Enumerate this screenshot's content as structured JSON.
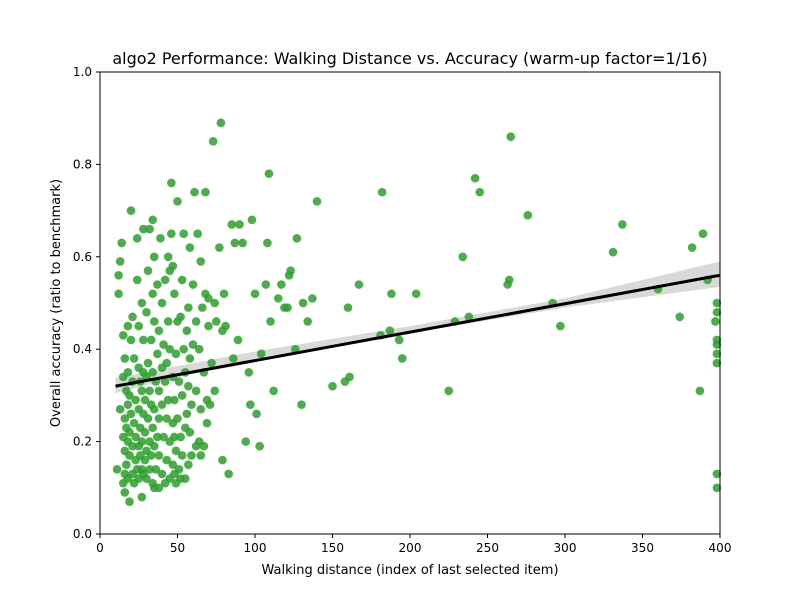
{
  "chart_data": {
    "type": "scatter",
    "title": "algo2 Performance: Walking Distance vs. Accuracy (warm-up factor=1/16)",
    "xlabel": "Walking distance (index of last selected item)",
    "ylabel": "Overall accuracy (ratio to benchmark)",
    "xlim": [
      0,
      400
    ],
    "ylim": [
      0.0,
      1.0
    ],
    "x_ticks": [
      "0",
      "50",
      "100",
      "150",
      "200",
      "250",
      "300",
      "350",
      "400"
    ],
    "y_ticks": [
      "0.0",
      "0.2",
      "0.4",
      "0.6",
      "0.8",
      "1.0"
    ],
    "grid": false,
    "legend": "none",
    "point_color": "#2ca02c",
    "regression": {
      "line": [
        [
          10,
          0.32
        ],
        [
          400,
          0.56
        ]
      ],
      "ci_band": {
        "x": [
          10,
          100,
          200,
          300,
          400
        ],
        "lower": [
          0.305,
          0.38,
          0.435,
          0.49,
          0.535
        ],
        "upper": [
          0.338,
          0.395,
          0.45,
          0.51,
          0.59
        ]
      },
      "line_color": "#000000",
      "band_color": "#cccccc"
    },
    "points": [
      [
        11,
        0.14
      ],
      [
        12,
        0.52
      ],
      [
        12,
        0.56
      ],
      [
        13,
        0.27
      ],
      [
        13,
        0.59
      ],
      [
        14,
        0.63
      ],
      [
        15,
        0.11
      ],
      [
        15,
        0.21
      ],
      [
        15,
        0.34
      ],
      [
        15,
        0.43
      ],
      [
        16,
        0.09
      ],
      [
        16,
        0.13
      ],
      [
        16,
        0.18
      ],
      [
        16,
        0.25
      ],
      [
        16,
        0.38
      ],
      [
        17,
        0.15
      ],
      [
        17,
        0.23
      ],
      [
        17,
        0.31
      ],
      [
        18,
        0.12
      ],
      [
        18,
        0.2
      ],
      [
        18,
        0.28
      ],
      [
        18,
        0.35
      ],
      [
        18,
        0.45
      ],
      [
        19,
        0.07
      ],
      [
        19,
        0.17
      ],
      [
        19,
        0.22
      ],
      [
        19,
        0.3
      ],
      [
        20,
        0.7
      ],
      [
        20,
        0.42
      ],
      [
        20,
        0.26
      ],
      [
        21,
        0.13
      ],
      [
        21,
        0.19
      ],
      [
        21,
        0.33
      ],
      [
        21,
        0.47
      ],
      [
        22,
        0.11
      ],
      [
        22,
        0.24
      ],
      [
        22,
        0.38
      ],
      [
        23,
        0.16
      ],
      [
        23,
        0.21
      ],
      [
        23,
        0.29
      ],
      [
        24,
        0.14
      ],
      [
        24,
        0.55
      ],
      [
        24,
        0.64
      ],
      [
        25,
        0.12
      ],
      [
        25,
        0.19
      ],
      [
        25,
        0.27
      ],
      [
        25,
        0.36
      ],
      [
        25,
        0.45
      ],
      [
        26,
        0.17
      ],
      [
        26,
        0.23
      ],
      [
        26,
        0.33
      ],
      [
        27,
        0.08
      ],
      [
        27,
        0.14
      ],
      [
        27,
        0.2
      ],
      [
        27,
        0.31
      ],
      [
        27,
        0.5
      ],
      [
        28,
        0.13
      ],
      [
        28,
        0.26
      ],
      [
        28,
        0.35
      ],
      [
        28,
        0.42
      ],
      [
        28,
        0.66
      ],
      [
        29,
        0.16
      ],
      [
        29,
        0.22
      ],
      [
        29,
        0.29
      ],
      [
        30,
        0.12
      ],
      [
        30,
        0.18
      ],
      [
        30,
        0.34
      ],
      [
        30,
        0.48
      ],
      [
        31,
        0.25
      ],
      [
        31,
        0.37
      ],
      [
        31,
        0.57
      ],
      [
        32,
        0.14
      ],
      [
        32,
        0.2
      ],
      [
        32,
        0.31
      ],
      [
        32,
        0.66
      ],
      [
        33,
        0.17
      ],
      [
        33,
        0.28
      ],
      [
        33,
        0.42
      ],
      [
        34,
        0.11
      ],
      [
        34,
        0.23
      ],
      [
        34,
        0.35
      ],
      [
        34,
        0.52
      ],
      [
        34,
        0.68
      ],
      [
        35,
        0.1
      ],
      [
        35,
        0.19
      ],
      [
        35,
        0.27
      ],
      [
        35,
        0.46
      ],
      [
        35,
        0.6
      ],
      [
        36,
        0.14
      ],
      [
        36,
        0.33
      ],
      [
        37,
        0.21
      ],
      [
        37,
        0.39
      ],
      [
        37,
        0.54
      ],
      [
        38,
        0.1
      ],
      [
        38,
        0.17
      ],
      [
        38,
        0.25
      ],
      [
        38,
        0.31
      ],
      [
        38,
        0.44
      ],
      [
        39,
        0.64
      ],
      [
        40,
        0.13
      ],
      [
        40,
        0.28
      ],
      [
        40,
        0.36
      ],
      [
        40,
        0.5
      ],
      [
        41,
        0.21
      ],
      [
        41,
        0.41
      ],
      [
        42,
        0.11
      ],
      [
        42,
        0.33
      ],
      [
        42,
        0.55
      ],
      [
        43,
        0.16
      ],
      [
        43,
        0.25
      ],
      [
        43,
        0.37
      ],
      [
        44,
        0.29
      ],
      [
        44,
        0.46
      ],
      [
        44,
        0.6
      ],
      [
        45,
        0.12
      ],
      [
        45,
        0.2
      ],
      [
        45,
        0.4
      ],
      [
        45,
        0.57
      ],
      [
        46,
        0.65
      ],
      [
        46,
        0.76
      ],
      [
        47,
        0.15
      ],
      [
        47,
        0.24
      ],
      [
        47,
        0.34
      ],
      [
        47,
        0.58
      ],
      [
        48,
        0.13
      ],
      [
        48,
        0.21
      ],
      [
        48,
        0.29
      ],
      [
        48,
        0.52
      ],
      [
        49,
        0.11
      ],
      [
        49,
        0.18
      ],
      [
        49,
        0.39
      ],
      [
        50,
        0.72
      ],
      [
        50,
        0.25
      ],
      [
        50,
        0.46
      ],
      [
        51,
        0.14
      ],
      [
        51,
        0.33
      ],
      [
        52,
        0.12
      ],
      [
        52,
        0.21
      ],
      [
        52,
        0.47
      ],
      [
        53,
        0.17
      ],
      [
        53,
        0.3
      ],
      [
        53,
        0.55
      ],
      [
        54,
        0.4
      ],
      [
        54,
        0.65
      ],
      [
        55,
        0.12
      ],
      [
        55,
        0.23
      ],
      [
        55,
        0.35
      ],
      [
        56,
        0.26
      ],
      [
        56,
        0.44
      ],
      [
        57,
        0.15
      ],
      [
        57,
        0.32
      ],
      [
        57,
        0.49
      ],
      [
        58,
        0.22
      ],
      [
        58,
        0.38
      ],
      [
        58,
        0.62
      ],
      [
        59,
        0.17
      ],
      [
        59,
        0.28
      ],
      [
        60,
        0.41
      ],
      [
        60,
        0.54
      ],
      [
        61,
        0.74
      ],
      [
        62,
        0.19
      ],
      [
        62,
        0.31
      ],
      [
        62,
        0.46
      ],
      [
        63,
        0.65
      ],
      [
        64,
        0.2
      ],
      [
        64,
        0.4
      ],
      [
        65,
        0.17
      ],
      [
        65,
        0.27
      ],
      [
        65,
        0.59
      ],
      [
        66,
        0.49
      ],
      [
        67,
        0.19
      ],
      [
        67,
        0.35
      ],
      [
        68,
        0.74
      ],
      [
        68,
        0.52
      ],
      [
        69,
        0.24
      ],
      [
        69,
        0.29
      ],
      [
        70,
        0.45
      ],
      [
        70,
        0.51
      ],
      [
        71,
        0.28
      ],
      [
        72,
        0.37
      ],
      [
        73,
        0.85
      ],
      [
        74,
        0.31
      ],
      [
        74,
        0.5
      ],
      [
        75,
        0.46
      ],
      [
        77,
        0.62
      ],
      [
        78,
        0.89
      ],
      [
        79,
        0.16
      ],
      [
        79,
        0.44
      ],
      [
        80,
        0.52
      ],
      [
        81,
        0.45
      ],
      [
        83,
        0.13
      ],
      [
        85,
        0.67
      ],
      [
        86,
        0.38
      ],
      [
        87,
        0.63
      ],
      [
        89,
        0.42
      ],
      [
        90,
        0.67
      ],
      [
        92,
        0.63
      ],
      [
        94,
        0.2
      ],
      [
        96,
        0.35
      ],
      [
        97,
        0.28
      ],
      [
        98,
        0.68
      ],
      [
        100,
        0.52
      ],
      [
        101,
        0.26
      ],
      [
        103,
        0.19
      ],
      [
        104,
        0.39
      ],
      [
        107,
        0.54
      ],
      [
        108,
        0.63
      ],
      [
        109,
        0.78
      ],
      [
        110,
        0.46
      ],
      [
        112,
        0.31
      ],
      [
        115,
        0.51
      ],
      [
        117,
        0.54
      ],
      [
        119,
        0.49
      ],
      [
        121,
        0.49
      ],
      [
        122,
        0.56
      ],
      [
        123,
        0.57
      ],
      [
        126,
        0.4
      ],
      [
        127,
        0.64
      ],
      [
        130,
        0.28
      ],
      [
        131,
        0.5
      ],
      [
        134,
        0.46
      ],
      [
        137,
        0.51
      ],
      [
        140,
        0.72
      ],
      [
        150,
        0.32
      ],
      [
        158,
        0.33
      ],
      [
        160,
        0.49
      ],
      [
        161,
        0.34
      ],
      [
        167,
        0.54
      ],
      [
        181,
        0.43
      ],
      [
        182,
        0.74
      ],
      [
        187,
        0.44
      ],
      [
        188,
        0.52
      ],
      [
        193,
        0.42
      ],
      [
        195,
        0.38
      ],
      [
        204,
        0.52
      ],
      [
        225,
        0.31
      ],
      [
        229,
        0.46
      ],
      [
        234,
        0.6
      ],
      [
        238,
        0.47
      ],
      [
        242,
        0.77
      ],
      [
        245,
        0.74
      ],
      [
        263,
        0.54
      ],
      [
        264,
        0.55
      ],
      [
        265,
        0.86
      ],
      [
        276,
        0.69
      ],
      [
        292,
        0.5
      ],
      [
        297,
        0.45
      ],
      [
        331,
        0.61
      ],
      [
        337,
        0.67
      ],
      [
        360,
        0.53
      ],
      [
        374,
        0.47
      ],
      [
        382,
        0.62
      ],
      [
        387,
        0.31
      ],
      [
        389,
        0.65
      ],
      [
        392,
        0.55
      ],
      [
        397,
        0.46
      ],
      [
        398,
        0.37
      ],
      [
        398,
        0.39
      ],
      [
        398,
        0.41
      ],
      [
        398,
        0.42
      ],
      [
        398,
        0.48
      ],
      [
        398,
        0.5
      ],
      [
        398,
        0.13
      ],
      [
        398,
        0.1
      ]
    ]
  }
}
